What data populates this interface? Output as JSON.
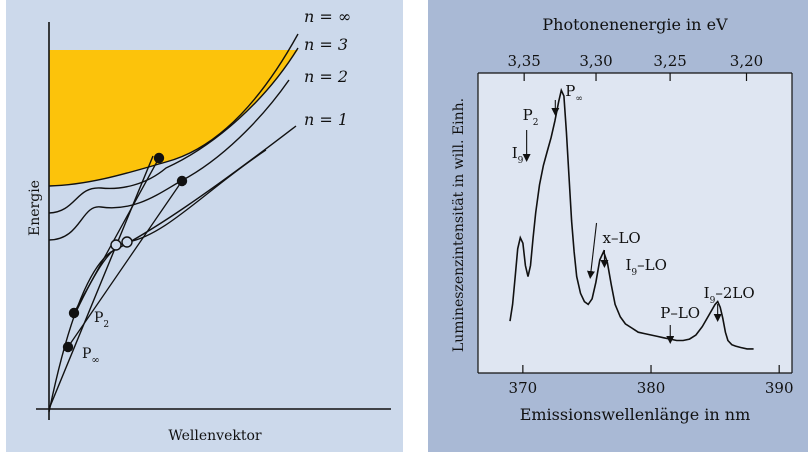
{
  "chart_data": [
    {
      "type": "diagram",
      "xlabel": "Wellenvektor",
      "ylabel": "Energie",
      "band_labels": [
        "n = ∞",
        "n = 3",
        "n = 2",
        "n = 1"
      ],
      "points": [
        {
          "label": "P",
          "subscript": "2"
        },
        {
          "label": "P",
          "subscript": "∞"
        }
      ],
      "colors": {
        "continuum": "#fcc30b",
        "background": "#ccd9eb",
        "lines": "#111111"
      }
    },
    {
      "type": "line",
      "top_axis": {
        "label": "Photonenenergie in eV",
        "ticks": [
          "3,35",
          "3,30",
          "3,25",
          "3,20"
        ]
      },
      "xlabel": "Emissionswellenlänge in nm",
      "ylabel": "Lumineszenzintensität in will. Einh.",
      "xlim": [
        366.5,
        391
      ],
      "x_ticks": [
        370,
        380,
        390
      ],
      "ylim": [
        0,
        1
      ],
      "series": [
        {
          "x": [
            369.0,
            369.2,
            369.4,
            369.6,
            369.8,
            370.0,
            370.2,
            370.4,
            370.6,
            370.8,
            371.0,
            371.3,
            371.6,
            371.9,
            372.2,
            372.5,
            372.8,
            373.0,
            373.2,
            373.4,
            373.6,
            373.8,
            374.0,
            374.2,
            374.5,
            374.8,
            375.1,
            375.4,
            375.7,
            376.0,
            376.3,
            376.6,
            376.9,
            377.2,
            377.6,
            378.0,
            378.5,
            379.0,
            379.5,
            380.0,
            380.5,
            381.0,
            381.5,
            382.0,
            382.5,
            383.0,
            383.5,
            384.0,
            384.5,
            385.0,
            385.2,
            385.4,
            385.6,
            385.8,
            386.0,
            386.3,
            386.6,
            387.0,
            387.5,
            388.0
          ],
          "y": [
            0.14,
            0.2,
            0.3,
            0.4,
            0.44,
            0.42,
            0.34,
            0.3,
            0.34,
            0.44,
            0.53,
            0.63,
            0.7,
            0.75,
            0.8,
            0.86,
            0.93,
            0.97,
            0.95,
            0.82,
            0.66,
            0.5,
            0.39,
            0.3,
            0.24,
            0.21,
            0.2,
            0.22,
            0.28,
            0.36,
            0.39,
            0.35,
            0.27,
            0.2,
            0.155,
            0.13,
            0.115,
            0.1,
            0.095,
            0.09,
            0.085,
            0.08,
            0.075,
            0.07,
            0.07,
            0.075,
            0.09,
            0.12,
            0.16,
            0.2,
            0.21,
            0.19,
            0.15,
            0.1,
            0.07,
            0.055,
            0.05,
            0.045,
            0.04,
            0.04
          ]
        }
      ],
      "annotations": [
        {
          "label": "I",
          "subscript": "9",
          "x": 369.6
        },
        {
          "label": "P",
          "subscript": "2",
          "x": 371.7
        },
        {
          "label": "P",
          "subscript": "∞",
          "x": 373.0
        },
        {
          "label": "x–LO",
          "x": 374.5
        },
        {
          "label": "I",
          "subscript": "9",
          "suffix": "–LO",
          "x": 376.6
        },
        {
          "label": "P–LO",
          "x": 381.5
        },
        {
          "label": "I",
          "subscript": "9",
          "suffix": "–2LO",
          "x": 385.2
        }
      ],
      "grid": false
    }
  ]
}
